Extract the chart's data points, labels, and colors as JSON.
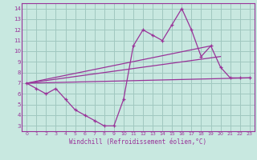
{
  "bg_color": "#c8e8e0",
  "grid_color": "#a0c8c0",
  "line_color": "#993399",
  "xlabel": "Windchill (Refroidissement éolien,°C)",
  "ylabel_ticks": [
    3,
    4,
    5,
    6,
    7,
    8,
    9,
    10,
    11,
    12,
    13,
    14
  ],
  "xticks": [
    0,
    1,
    2,
    3,
    4,
    5,
    6,
    7,
    8,
    9,
    10,
    11,
    12,
    13,
    14,
    15,
    16,
    17,
    18,
    19,
    20,
    21,
    22,
    23
  ],
  "ylim": [
    2.5,
    14.5
  ],
  "xlim": [
    -0.5,
    23.5
  ],
  "y_main": [
    7.0,
    6.5,
    6.0,
    6.5,
    5.5,
    4.5,
    4.0,
    3.5,
    3.0,
    3.0,
    5.5,
    10.5,
    12.0,
    11.5,
    11.0,
    12.5,
    14.0,
    12.0,
    9.5,
    10.5,
    8.5,
    7.5,
    7.5,
    7.5
  ],
  "trend1_x": [
    0,
    23
  ],
  "trend1_y": [
    7.0,
    7.5
  ],
  "trend2_x": [
    0,
    20
  ],
  "trend2_y": [
    7.0,
    9.5
  ],
  "trend3_x": [
    0,
    19
  ],
  "trend3_y": [
    7.0,
    10.5
  ]
}
